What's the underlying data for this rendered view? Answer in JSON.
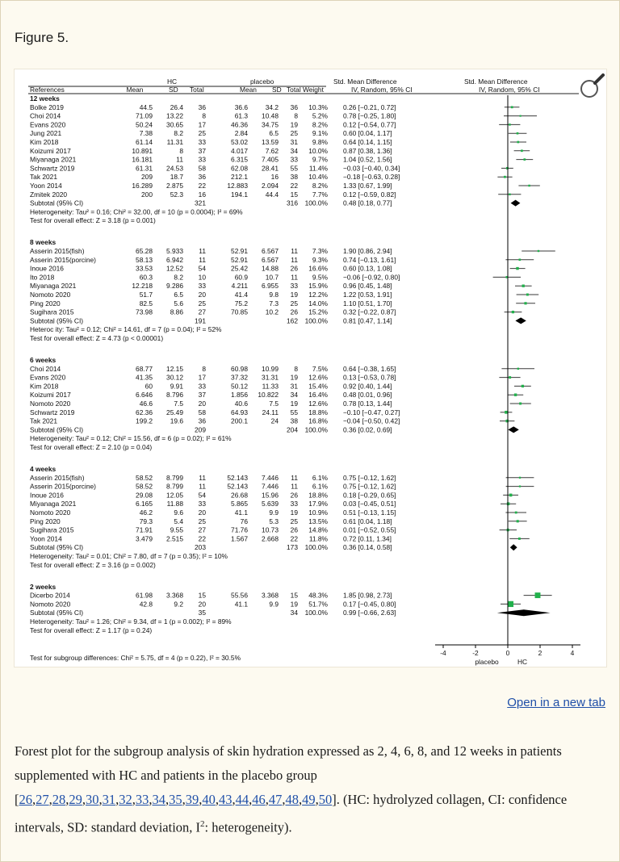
{
  "figure_label": "Figure 5.",
  "open_link": "Open in a new tab",
  "caption": {
    "text1": "Forest plot for the subgroup analysis of skin hydration expressed as 2, 4, 6, 8, and 12 weeks in patients supplemented with HC and patients in the placebo group ",
    "refs": [
      "26",
      "27",
      "28",
      "29",
      "30",
      "31",
      "32",
      "33",
      "34",
      "35",
      "39",
      "40",
      "43",
      "44",
      "46",
      "47",
      "48",
      "49",
      "50"
    ],
    "bracket_open": "[",
    "bracket_close": "]",
    "text2": ". (HC: hydrolyzed collagen, CI: confidence intervals, SD: standard deviation, I",
    "sup": "2",
    "text3": ": heterogeneity)."
  },
  "plot": {
    "header": {
      "group1": "HC",
      "group2": "placebo",
      "effect_title": "Std. Mean Difference",
      "effect_sub": "IV, Random, 95% CI",
      "plot_title": "Std. Mean Difference",
      "plot_sub": "IV, Random, 95% CI",
      "col_ref": "References",
      "col_mean": "Mean",
      "col_sd": "SD",
      "col_total": "Total",
      "col_mean2": "Mean",
      "col_sd2": "SD",
      "col_total2": "Total",
      "col_weight": "Weight"
    },
    "axis": {
      "ticks": [
        -4,
        -2,
        0,
        2,
        4
      ],
      "tick_labels": [
        "-4",
        "-2",
        "0",
        "2",
        "4"
      ],
      "left_label": "placebo",
      "right_label": "HC"
    },
    "subgroup_test": "Test for subgroup differences: Chi² = 5.75, df = 4 (p = 0.22), I² = 30.5%",
    "groups": [
      {
        "title": "12 weeks",
        "studies": [
          {
            "ref": "Bolke 2019",
            "m1": "44.5",
            "sd1": "26.4",
            "n1": "36",
            "m2": "36.6",
            "sd2": "34.2",
            "n2": "36",
            "w": "10.3%",
            "ci": "0.26 [−0.21, 0.72]",
            "est": 0.26,
            "lo": -0.21,
            "hi": 0.72
          },
          {
            "ref": "Choi 2014",
            "m1": "71.09",
            "sd1": "13.22",
            "n1": "8",
            "m2": "61.3",
            "sd2": "10.48",
            "n2": "8",
            "w": "5.2%",
            "ci": "0.78 [−0.25, 1.80]",
            "est": 0.78,
            "lo": -0.25,
            "hi": 1.8
          },
          {
            "ref": "Evans 2020",
            "m1": "50.24",
            "sd1": "30.65",
            "n1": "17",
            "m2": "46.36",
            "sd2": "34.75",
            "n2": "19",
            "w": "8.2%",
            "ci": "0.12 [−0.54, 0.77]",
            "est": 0.12,
            "lo": -0.54,
            "hi": 0.77
          },
          {
            "ref": "Jung 2021",
            "m1": "7.38",
            "sd1": "8.2",
            "n1": "25",
            "m2": "2.84",
            "sd2": "6.5",
            "n2": "25",
            "w": "9.1%",
            "ci": "0.60 [0.04, 1.17]",
            "est": 0.6,
            "lo": 0.04,
            "hi": 1.17
          },
          {
            "ref": "Kim 2018",
            "m1": "61.14",
            "sd1": "11.31",
            "n1": "33",
            "m2": "53.02",
            "sd2": "13.59",
            "n2": "31",
            "w": "9.8%",
            "ci": "0.64 [0.14, 1.15]",
            "est": 0.64,
            "lo": 0.14,
            "hi": 1.15
          },
          {
            "ref": "Koizumi 2017",
            "m1": "10.891",
            "sd1": "8",
            "n1": "37",
            "m2": "4.017",
            "sd2": "7.62",
            "n2": "34",
            "w": "10.0%",
            "ci": "0.87 [0.38, 1.36]",
            "est": 0.87,
            "lo": 0.38,
            "hi": 1.36
          },
          {
            "ref": "Miyanaga 2021",
            "m1": "16.181",
            "sd1": "11",
            "n1": "33",
            "m2": "6.315",
            "sd2": "7.405",
            "n2": "33",
            "w": "9.7%",
            "ci": "1.04 [0.52, 1.56]",
            "est": 1.04,
            "lo": 0.52,
            "hi": 1.56
          },
          {
            "ref": "Schwartz 2019",
            "m1": "61.31",
            "sd1": "24.53",
            "n1": "58",
            "m2": "62.08",
            "sd2": "28.41",
            "n2": "55",
            "w": "11.4%",
            "ci": "−0.03 [−0.40, 0.34]",
            "est": -0.03,
            "lo": -0.4,
            "hi": 0.34
          },
          {
            "ref": "Tak 2021",
            "m1": "209",
            "sd1": "18.7",
            "n1": "36",
            "m2": "212.1",
            "sd2": "16",
            "n2": "38",
            "w": "10.4%",
            "ci": "−0.18 [−0.63, 0.28]",
            "est": -0.18,
            "lo": -0.63,
            "hi": 0.28
          },
          {
            "ref": "Yoon 2014",
            "m1": "16.289",
            "sd1": "2.875",
            "n1": "22",
            "m2": "12.883",
            "sd2": "2.094",
            "n2": "22",
            "w": "8.2%",
            "ci": "1.33 [0.67, 1.99]",
            "est": 1.33,
            "lo": 0.67,
            "hi": 1.99
          },
          {
            "ref": "Zmitek 2020",
            "m1": "200",
            "sd1": "52.3",
            "n1": "16",
            "m2": "194.1",
            "sd2": "44.4",
            "n2": "15",
            "w": "7.7%",
            "ci": "0.12 [−0.59, 0.82]",
            "est": 0.12,
            "lo": -0.59,
            "hi": 0.82
          }
        ],
        "subtotal": {
          "label": "Subtotal (95% CI)",
          "n1": "321",
          "n2": "316",
          "w": "100.0%",
          "ci": "0.48 [0.18, 0.77]",
          "est": 0.48,
          "lo": 0.18,
          "hi": 0.77
        },
        "het": "Heterogeneity: Tau² = 0.16; Chi² = 32.00, df = 10 (p = 0.0004); I² = 69%",
        "test": "Test for overall effect: Z = 3.18 (p = 0.001)"
      },
      {
        "title": "8 weeks",
        "studies": [
          {
            "ref": "Asserin 2015(fish)",
            "m1": "65.28",
            "sd1": "5.933",
            "n1": "11",
            "m2": "52.91",
            "sd2": "6.567",
            "n2": "11",
            "w": "7.3%",
            "ci": "1.90 [0.86, 2.94]",
            "est": 1.9,
            "lo": 0.86,
            "hi": 2.94
          },
          {
            "ref": "Asserin 2015(porcine)",
            "m1": "58.13",
            "sd1": "6.942",
            "n1": "11",
            "m2": "52.91",
            "sd2": "6.567",
            "n2": "11",
            "w": "9.3%",
            "ci": "0.74 [−0.13, 1.61]",
            "est": 0.74,
            "lo": -0.13,
            "hi": 1.61
          },
          {
            "ref": "Inoue 2016",
            "m1": "33.53",
            "sd1": "12.52",
            "n1": "54",
            "m2": "25.42",
            "sd2": "14.88",
            "n2": "26",
            "w": "16.6%",
            "ci": "0.60 [0.13, 1.08]",
            "est": 0.6,
            "lo": 0.13,
            "hi": 1.08
          },
          {
            "ref": "Ito 2018",
            "m1": "60.3",
            "sd1": "8.2",
            "n1": "10",
            "m2": "60.9",
            "sd2": "10.7",
            "n2": "11",
            "w": "9.5%",
            "ci": "−0.06 [−0.92, 0.80]",
            "est": -0.06,
            "lo": -0.92,
            "hi": 0.8
          },
          {
            "ref": "Miyanaga 2021",
            "m1": "12.218",
            "sd1": "9.286",
            "n1": "33",
            "m2": "4.211",
            "sd2": "6.955",
            "n2": "33",
            "w": "15.9%",
            "ci": "0.96 [0.45, 1.48]",
            "est": 0.96,
            "lo": 0.45,
            "hi": 1.48
          },
          {
            "ref": "Nomoto 2020",
            "m1": "51.7",
            "sd1": "6.5",
            "n1": "20",
            "m2": "41.4",
            "sd2": "9.8",
            "n2": "19",
            "w": "12.2%",
            "ci": "1.22 [0.53, 1.91]",
            "est": 1.22,
            "lo": 0.53,
            "hi": 1.91
          },
          {
            "ref": "Ping 2020",
            "m1": "82.5",
            "sd1": "5.6",
            "n1": "25",
            "m2": "75.2",
            "sd2": "7.3",
            "n2": "25",
            "w": "14.0%",
            "ci": "1.10 [0.51, 1.70]",
            "est": 1.1,
            "lo": 0.51,
            "hi": 1.7
          },
          {
            "ref": "Sugihara 2015",
            "m1": "73.98",
            "sd1": "8.86",
            "n1": "27",
            "m2": "70.85",
            "sd2": "10.2",
            "n2": "26",
            "w": "15.2%",
            "ci": "0.32 [−0.22, 0.87]",
            "est": 0.32,
            "lo": -0.22,
            "hi": 0.87
          }
        ],
        "subtotal": {
          "label": "Subtotal (95% CI)",
          "n1": "191",
          "n2": "162",
          "w": "100.0%",
          "ci": "0.81 [0.47, 1.14]",
          "est": 0.81,
          "lo": 0.47,
          "hi": 1.14
        },
        "het": "Heteroc ity: Tau² = 0.12; Chi² = 14.61, df = 7 (p = 0.04); I² = 52%",
        "test": "Test for overall effect: Z = 4.73 (p < 0.00001)"
      },
      {
        "title": "6 weeks",
        "studies": [
          {
            "ref": "Choi 2014",
            "m1": "68.77",
            "sd1": "12.15",
            "n1": "8",
            "m2": "60.98",
            "sd2": "10.99",
            "n2": "8",
            "w": "7.5%",
            "ci": "0.64 [−0.38, 1.65]",
            "est": 0.64,
            "lo": -0.38,
            "hi": 1.65
          },
          {
            "ref": "Evans 2020",
            "m1": "41.35",
            "sd1": "30.12",
            "n1": "17",
            "m2": "37.32",
            "sd2": "31.31",
            "n2": "19",
            "w": "12.6%",
            "ci": "0.13 [−0.53, 0.78]",
            "est": 0.13,
            "lo": -0.53,
            "hi": 0.78
          },
          {
            "ref": "Kim 2018",
            "m1": "60",
            "sd1": "9.91",
            "n1": "33",
            "m2": "50.12",
            "sd2": "11.33",
            "n2": "31",
            "w": "15.4%",
            "ci": "0.92 [0.40, 1.44]",
            "est": 0.92,
            "lo": 0.4,
            "hi": 1.44
          },
          {
            "ref": "Koizumi 2017",
            "m1": "6.646",
            "sd1": "8.796",
            "n1": "37",
            "m2": "1.856",
            "sd2": "10.822",
            "n2": "34",
            "w": "16.4%",
            "ci": "0.48 [0.01, 0.96]",
            "est": 0.48,
            "lo": 0.01,
            "hi": 0.96
          },
          {
            "ref": "Nomoto 2020",
            "m1": "46.6",
            "sd1": "7.5",
            "n1": "20",
            "m2": "40.6",
            "sd2": "7.5",
            "n2": "19",
            "w": "12.6%",
            "ci": "0.78 [0.13, 1.44]",
            "est": 0.78,
            "lo": 0.13,
            "hi": 1.44
          },
          {
            "ref": "Schwartz 2019",
            "m1": "62.36",
            "sd1": "25.49",
            "n1": "58",
            "m2": "64.93",
            "sd2": "24.11",
            "n2": "55",
            "w": "18.8%",
            "ci": "−0.10 [−0.47, 0.27]",
            "est": -0.1,
            "lo": -0.47,
            "hi": 0.27
          },
          {
            "ref": "Tak 2021",
            "m1": "199.2",
            "sd1": "19.6",
            "n1": "36",
            "m2": "200.1",
            "sd2": "24",
            "n2": "38",
            "w": "16.8%",
            "ci": "−0.04 [−0.50, 0.42]",
            "est": -0.04,
            "lo": -0.5,
            "hi": 0.42
          }
        ],
        "subtotal": {
          "label": "Subtotal (95% CI)",
          "n1": "209",
          "n2": "204",
          "w": "100.0%",
          "ci": "0.36 [0.02, 0.69]",
          "est": 0.36,
          "lo": 0.02,
          "hi": 0.69
        },
        "het": "Heterogeneity: Tau² = 0.12; Chi² = 15.56, df = 6 (p = 0.02); I² = 61%",
        "test": "Test for overall effect: Z = 2.10 (p = 0.04)"
      },
      {
        "title": "4 weeks",
        "studies": [
          {
            "ref": "Asserin 2015(fish)",
            "m1": "58.52",
            "sd1": "8.799",
            "n1": "11",
            "m2": "52.143",
            "sd2": "7.446",
            "n2": "11",
            "w": "6.1%",
            "ci": "0.75 [−0.12, 1.62]",
            "est": 0.75,
            "lo": -0.12,
            "hi": 1.62
          },
          {
            "ref": "Asserin 2015(porcine)",
            "m1": "58.52",
            "sd1": "8.799",
            "n1": "11",
            "m2": "52.143",
            "sd2": "7.446",
            "n2": "11",
            "w": "6.1%",
            "ci": "0.75 [−0.12, 1.62]",
            "est": 0.75,
            "lo": -0.12,
            "hi": 1.62
          },
          {
            "ref": "Inoue 2016",
            "m1": "29.08",
            "sd1": "12.05",
            "n1": "54",
            "m2": "26.68",
            "sd2": "15.96",
            "n2": "26",
            "w": "18.8%",
            "ci": "0.18 [−0.29, 0.65]",
            "est": 0.18,
            "lo": -0.29,
            "hi": 0.65
          },
          {
            "ref": "Miyanaga 2021",
            "m1": "6.165",
            "sd1": "11.88",
            "n1": "33",
            "m2": "5.865",
            "sd2": "5.639",
            "n2": "33",
            "w": "17.9%",
            "ci": "0.03 [−0.45, 0.51]",
            "est": 0.03,
            "lo": -0.45,
            "hi": 0.51
          },
          {
            "ref": "Nomoto 2020",
            "m1": "46.2",
            "sd1": "9.6",
            "n1": "20",
            "m2": "41.1",
            "sd2": "9.9",
            "n2": "19",
            "w": "10.9%",
            "ci": "0.51 [−0.13, 1.15]",
            "est": 0.51,
            "lo": -0.13,
            "hi": 1.15
          },
          {
            "ref": "Ping 2020",
            "m1": "79.3",
            "sd1": "5.4",
            "n1": "25",
            "m2": "76",
            "sd2": "5.3",
            "n2": "25",
            "w": "13.5%",
            "ci": "0.61 [0.04, 1.18]",
            "est": 0.61,
            "lo": 0.04,
            "hi": 1.18
          },
          {
            "ref": "Sugihara 2015",
            "m1": "71.91",
            "sd1": "9.55",
            "n1": "27",
            "m2": "71.76",
            "sd2": "10.73",
            "n2": "26",
            "w": "14.8%",
            "ci": "0.01 [−0.52, 0.55]",
            "est": 0.01,
            "lo": -0.52,
            "hi": 0.55
          },
          {
            "ref": "Yoon 2014",
            "m1": "3.479",
            "sd1": "2.515",
            "n1": "22",
            "m2": "1.567",
            "sd2": "2.668",
            "n2": "22",
            "w": "11.8%",
            "ci": "0.72 [0.11, 1.34]",
            "est": 0.72,
            "lo": 0.11,
            "hi": 1.34
          }
        ],
        "subtotal": {
          "label": "Subtotal (95% CI)",
          "n1": "203",
          "n2": "173",
          "w": "100.0%",
          "ci": "0.36 [0.14, 0.58]",
          "est": 0.36,
          "lo": 0.14,
          "hi": 0.58
        },
        "het": "Heterogeneity: Tau² = 0.01; Chi² = 7.80, df = 7 (p = 0.35); I² = 10%",
        "test": "Test for overall effect: Z = 3.16 (p = 0.002)"
      },
      {
        "title": "2 weeks",
        "studies": [
          {
            "ref": "Dicerbo 2014",
            "m1": "61.98",
            "sd1": "3.368",
            "n1": "15",
            "m2": "55.56",
            "sd2": "3.368",
            "n2": "15",
            "w": "48.3%",
            "ci": "1.85 [0.98, 2.73]",
            "est": 1.85,
            "lo": 0.98,
            "hi": 2.73
          },
          {
            "ref": "Nomoto 2020",
            "m1": "42.8",
            "sd1": "9.2",
            "n1": "20",
            "m2": "41.1",
            "sd2": "9.9",
            "n2": "19",
            "w": "51.7%",
            "ci": "0.17 [−0.45, 0.80]",
            "est": 0.17,
            "lo": -0.45,
            "hi": 0.8
          }
        ],
        "subtotal": {
          "label": "Subtotal (95% CI)",
          "n1": "35",
          "n2": "34",
          "w": "100.0%",
          "ci": "0.99 [−0.66, 2.63]",
          "est": 0.99,
          "lo": -0.66,
          "hi": 2.63
        },
        "het": "Heterogeneity: Tau² = 1.26; Chi² = 9.34, df = 1 (p = 0.002); I² = 89%",
        "test": "Test for overall effect: Z = 1.17 (p = 0.24)"
      }
    ]
  },
  "colors": {
    "accent_link": "#1f4fa8",
    "marker": "#22b14c",
    "background": "#fdfaf0"
  },
  "icons": [
    "zoom-magnifier-icon"
  ]
}
